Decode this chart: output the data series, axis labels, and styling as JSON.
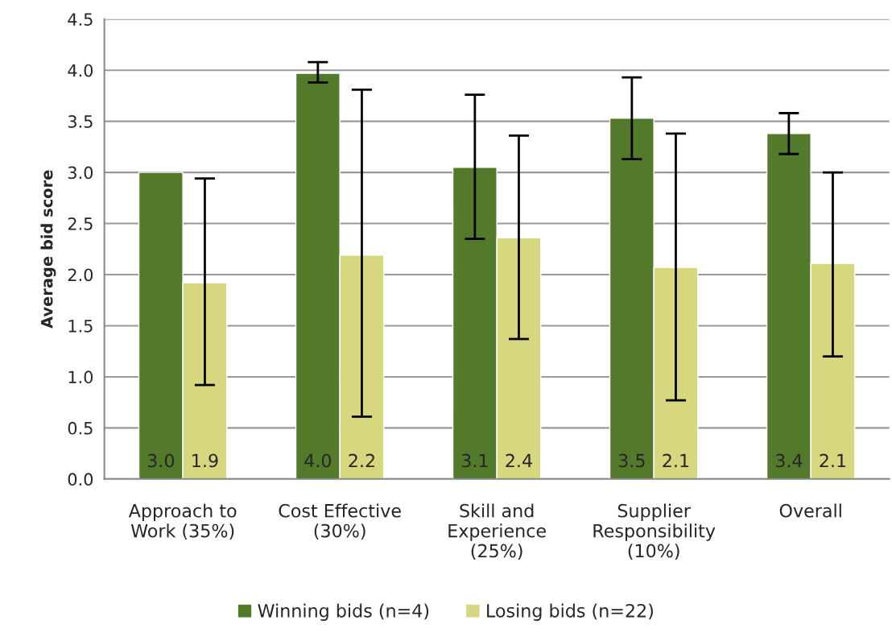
{
  "chart_data": {
    "type": "bar",
    "categories": [
      "Approach to\nWork (35%)",
      "Cost Effective\n(30%)",
      "Skill and\nExperience\n(25%)",
      "Supplier\nResponsibility\n(10%)",
      "Overall"
    ],
    "ylabel": "Average bid score",
    "series": [
      {
        "name": "Winning bids (n=4)",
        "color": "#53792b",
        "values": [
          3.0,
          3.97,
          3.05,
          3.53,
          3.38
        ],
        "value_labels": [
          "3.0",
          "4.0",
          "3.1",
          "3.5",
          "3.4"
        ],
        "errors": [
          null,
          [
            3.88,
            4.08
          ],
          [
            2.35,
            3.76
          ],
          [
            3.13,
            3.93
          ],
          [
            3.18,
            3.58
          ]
        ]
      },
      {
        "name": "Losing bids (n=22)",
        "color": "#d7d780",
        "values": [
          1.92,
          2.19,
          2.36,
          2.07,
          2.11
        ],
        "value_labels": [
          "1.9",
          "2.2",
          "2.4",
          "2.1",
          "2.1"
        ],
        "errors": [
          [
            0.92,
            2.94
          ],
          [
            0.61,
            3.81
          ],
          [
            1.37,
            3.36
          ],
          [
            0.77,
            3.38
          ],
          [
            1.2,
            3.0
          ]
        ]
      }
    ],
    "ylim": [
      0,
      4.5
    ],
    "yticks": [
      {
        "value": 0,
        "label": "0.0"
      },
      0.5,
      {
        "value": 1,
        "label": "1.0"
      },
      1.5,
      {
        "value": 2,
        "label": "2.0"
      },
      2.5,
      {
        "value": 3,
        "label": "3.0"
      },
      3.5,
      {
        "value": 4,
        "label": "4.0"
      },
      4.5
    ],
    "grid": "y",
    "legend": "bottom"
  }
}
